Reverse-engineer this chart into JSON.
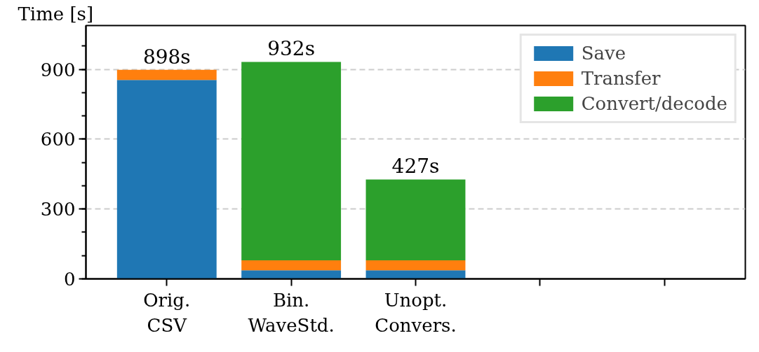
{
  "chart_data": {
    "type": "bar",
    "stacked": true,
    "ylabel": "Time [s]",
    "categories": [
      "Orig.\nCSV",
      "Bin.\nWaveStd.",
      "Unopt.\nConvers.",
      null,
      null
    ],
    "series": [
      {
        "name": "Save",
        "color": "#1f77b4",
        "values": [
          854,
          37,
          37,
          null,
          null
        ]
      },
      {
        "name": "Transfer",
        "color": "#ff7f0e",
        "values": [
          44,
          43,
          43,
          null,
          null
        ]
      },
      {
        "name": "Convert/decode",
        "color": "#2ca02c",
        "values": [
          null,
          852,
          347,
          null,
          null
        ]
      }
    ],
    "totals": [
      "898s",
      "932s",
      "427s",
      null,
      null
    ],
    "ylim": [
      0,
      1088
    ],
    "yticks": [
      0,
      300,
      600,
      900
    ],
    "grid": "y",
    "legend": "top right"
  }
}
